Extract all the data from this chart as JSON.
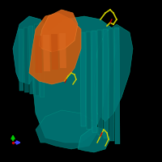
{
  "background_color": "#000000",
  "figure_size": [
    2.0,
    2.0
  ],
  "dpi": 100,
  "teal_color": "#007878",
  "teal_dark": "#006060",
  "teal_light": "#00a090",
  "orange_color": "#d4621a",
  "orange_light": "#e07820",
  "yellow_color": "#cccc00",
  "red_color": "#cc0000",
  "green_arrow": "#00cc00",
  "blue_arrow": "#4444ff",
  "red_dot": "#cc0000"
}
